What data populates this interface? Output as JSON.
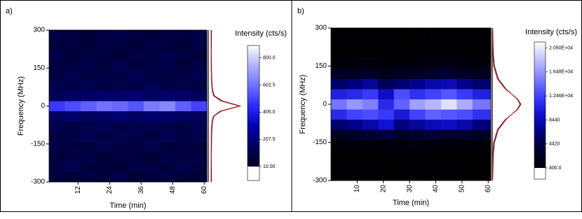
{
  "chart_data": [
    {
      "type": "heatmap",
      "panel_label": "a)",
      "xlabel": "Time (min)",
      "ylabel": "Frequency (MHz)",
      "colorbar_label": "Intensity (cts/s)",
      "xlim": [
        1,
        61
      ],
      "xticks": [
        12,
        24,
        36,
        48,
        60
      ],
      "ylim": [
        -300,
        300
      ],
      "yticks": [
        -300,
        -150,
        0,
        150,
        300
      ],
      "x_edges": [
        1,
        7,
        13,
        19,
        25,
        31,
        37,
        43,
        49,
        55,
        61
      ],
      "y_edges": [
        -300,
        -260,
        -220,
        -180,
        -140,
        -100,
        -60,
        -20,
        20,
        60,
        100,
        140,
        180,
        220,
        260,
        300
      ],
      "z": [
        [
          80,
          60,
          90,
          70,
          100,
          60,
          80,
          90,
          70,
          60
        ],
        [
          90,
          110,
          70,
          80,
          60,
          100,
          90,
          70,
          110,
          80
        ],
        [
          70,
          90,
          100,
          60,
          90,
          80,
          60,
          100,
          80,
          90
        ],
        [
          100,
          80,
          70,
          110,
          80,
          90,
          110,
          70,
          90,
          70
        ],
        [
          90,
          100,
          120,
          90,
          110,
          100,
          90,
          120,
          100,
          110
        ],
        [
          110,
          90,
          100,
          130,
          100,
          120,
          110,
          100,
          90,
          120
        ],
        [
          160,
          180,
          150,
          170,
          190,
          160,
          180,
          170,
          160,
          150
        ],
        [
          480,
          520,
          560,
          600,
          580,
          540,
          620,
          650,
          560,
          500
        ],
        [
          150,
          170,
          160,
          180,
          170,
          190,
          160,
          180,
          170,
          150
        ],
        [
          110,
          100,
          120,
          90,
          110,
          100,
          130,
          100,
          110,
          90
        ],
        [
          90,
          110,
          80,
          100,
          90,
          120,
          100,
          80,
          90,
          110
        ],
        [
          80,
          90,
          100,
          70,
          110,
          80,
          90,
          100,
          70,
          90
        ],
        [
          100,
          70,
          90,
          80,
          60,
          90,
          80,
          110,
          90,
          70
        ],
        [
          70,
          90,
          60,
          100,
          80,
          70,
          100,
          80,
          60,
          90
        ],
        [
          90,
          80,
          70,
          90,
          100,
          80,
          70,
          90,
          80,
          100
        ]
      ],
      "clim": [
        10,
        890
      ],
      "colormap": [
        "#000020",
        "#000060",
        "#0000b0",
        "#2a2aff",
        "#7070ff",
        "#b0b0ff",
        "#ffffff"
      ],
      "cbticks": [
        {
          "value": 10,
          "label": "10.00"
        },
        207.5,
        {
          "value": 405,
          "label": "405.0"
        },
        602.5,
        {
          "value": 800,
          "label": "800.0"
        }
      ],
      "profile_frequency": [
        -300,
        -200,
        -150,
        -100,
        -60,
        -40,
        -20,
        0,
        20,
        40,
        60,
        100,
        150,
        200,
        300
      ],
      "profile_lim": [
        0,
        720
      ],
      "profiles": [
        {
          "color": "#000000",
          "values": [
            70,
            65,
            70,
            75,
            90,
            120,
            280,
            680,
            300,
            130,
            95,
            75,
            70,
            65,
            70
          ]
        },
        {
          "color": "#e02020",
          "values": [
            60,
            60,
            62,
            65,
            80,
            110,
            260,
            660,
            270,
            115,
            85,
            68,
            62,
            60,
            60
          ]
        }
      ]
    },
    {
      "type": "heatmap",
      "panel_label": "b)",
      "xlabel": "Time (min)",
      "ylabel": "Frequency (MHz)",
      "colorbar_label": "Intensity (cts/s)",
      "xlim": [
        0,
        61
      ],
      "xticks": [
        10,
        20,
        30,
        40,
        50,
        60
      ],
      "ylim": [
        -300,
        300
      ],
      "yticks": [
        -300,
        -150,
        0,
        150,
        300
      ],
      "x_edges": [
        0,
        6,
        12,
        18,
        24,
        30,
        36,
        42,
        48,
        54,
        61
      ],
      "y_edges": [
        -300,
        -260,
        -220,
        -180,
        -140,
        -100,
        -60,
        -20,
        20,
        60,
        100,
        140,
        180,
        220,
        260,
        300
      ],
      "z": [
        [
          500,
          450,
          520,
          480,
          460,
          500,
          470,
          510,
          490,
          460
        ],
        [
          520,
          480,
          500,
          460,
          510,
          490,
          530,
          480,
          500,
          470
        ],
        [
          600,
          550,
          580,
          620,
          560,
          590,
          610,
          570,
          600,
          580
        ],
        [
          900,
          1200,
          1000,
          1100,
          950,
          1300,
          1200,
          1100,
          1000,
          950
        ],
        [
          2500,
          3000,
          3500,
          4000,
          2800,
          3200,
          3600,
          3000,
          3400,
          2600
        ],
        [
          6000,
          7000,
          8000,
          9500,
          6500,
          7500,
          8500,
          9000,
          8000,
          6500
        ],
        [
          11000,
          12500,
          13000,
          12000,
          10000,
          12500,
          14000,
          13500,
          13000,
          11500
        ],
        [
          15000,
          16500,
          15500,
          11000,
          14000,
          17000,
          18000,
          20000,
          17500,
          15000
        ],
        [
          10500,
          11000,
          12000,
          9000,
          13000,
          11500,
          12500,
          13500,
          12000,
          10500
        ],
        [
          5500,
          6500,
          7500,
          5000,
          6000,
          7000,
          8000,
          8500,
          7000,
          6000
        ],
        [
          2400,
          2800,
          3200,
          2000,
          2600,
          3000,
          3400,
          3600,
          3000,
          2500
        ],
        [
          1000,
          1200,
          1300,
          900,
          1100,
          1200,
          1400,
          1500,
          1200,
          1000
        ],
        [
          600,
          620,
          580,
          560,
          600,
          640,
          620,
          600,
          580,
          560
        ],
        [
          500,
          480,
          520,
          470,
          510,
          490,
          500,
          480,
          520,
          500
        ],
        [
          480,
          510,
          470,
          500,
          490,
          460,
          520,
          500,
          480,
          510
        ]
      ],
      "clim": [
        400,
        21500
      ],
      "colormap": [
        "#000000",
        "#000030",
        "#00007a",
        "#1010d0",
        "#4040ff",
        "#8080ff",
        "#c0c0ff",
        "#ffffff"
      ],
      "cbticks": [
        {
          "value": 400,
          "label": "400.0"
        },
        4420,
        8440,
        {
          "value": 12460,
          "label": "1.246E+04"
        },
        {
          "value": 16480,
          "label": "1.648E+04"
        },
        {
          "value": 20500,
          "label": "2.050E+04"
        }
      ],
      "profile_frequency": [
        -300,
        -200,
        -150,
        -100,
        -60,
        -40,
        -20,
        0,
        20,
        40,
        60,
        100,
        150,
        200,
        300
      ],
      "profile_lim": [
        0,
        21000
      ],
      "profiles": [
        {
          "color": "#000000",
          "values": [
            300,
            700,
            1500,
            4200,
            9500,
            13500,
            17500,
            19500,
            17500,
            13500,
            9500,
            4200,
            1500,
            700,
            300
          ]
        },
        {
          "color": "#e02020",
          "values": [
            150,
            400,
            1000,
            3500,
            9000,
            13500,
            17800,
            20000,
            17800,
            13500,
            9000,
            3500,
            1000,
            400,
            150
          ]
        }
      ]
    }
  ]
}
